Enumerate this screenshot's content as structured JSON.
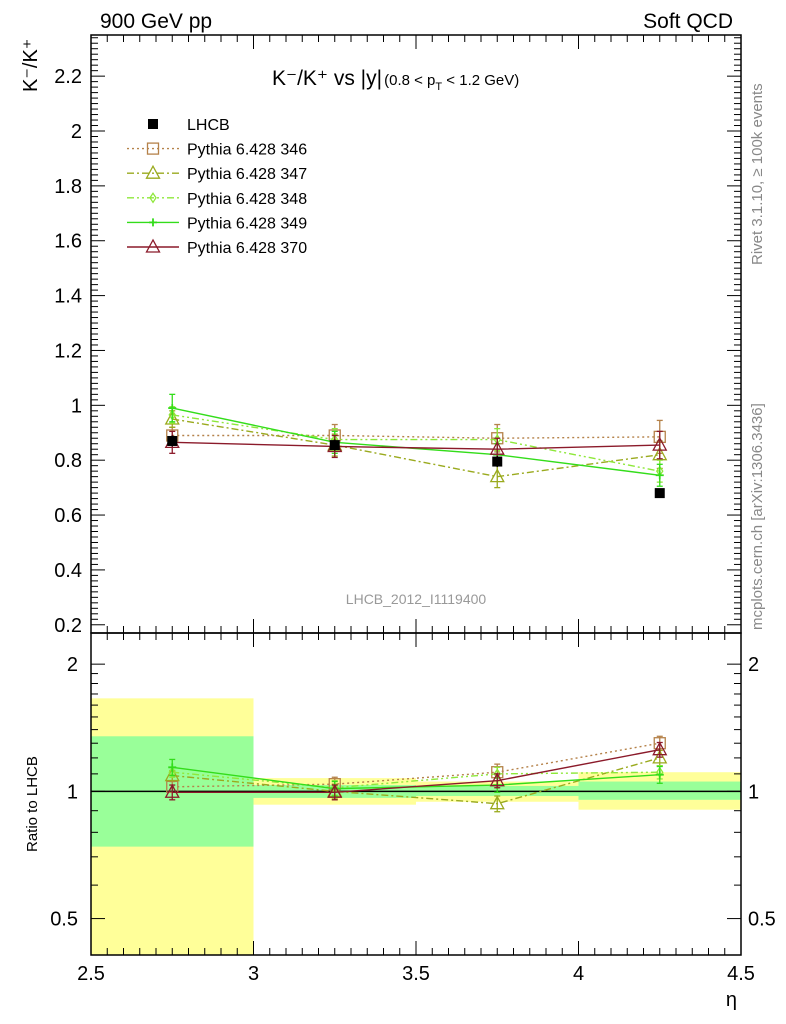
{
  "header": {
    "left": "900 GeV pp",
    "right": "Soft QCD"
  },
  "side_labels": {
    "rivet": "Rivet 3.1.10, ≥ 100k events",
    "mcplots": "mcplots.cern.ch [arXiv:1306.3436]"
  },
  "watermark": "LHCB_2012_I1119400",
  "chart_data": [
    {
      "type": "line",
      "title": "K⁻/K⁺ vs |y|",
      "title_suffix": "(0.8 < p",
      "title_suffix_sub": "T",
      "title_suffix_end": " < 1.2 GeV)",
      "ylabel": "K⁻/K⁺",
      "xlim": [
        2.5,
        4.5
      ],
      "ylim": [
        0.17,
        2.35
      ],
      "yticks": [
        0.2,
        0.4,
        0.6,
        0.8,
        1,
        1.2,
        1.4,
        1.6,
        1.8,
        2,
        2.2
      ],
      "ytick_labels": [
        "0.2",
        "0.4",
        "0.6",
        "0.8",
        "1",
        "1.2",
        "1.4",
        "1.6",
        "1.8",
        "2",
        "2.2"
      ],
      "legend_position": "top-left",
      "x": [
        2.75,
        3.25,
        3.75,
        4.25
      ],
      "data": {
        "name": "LHCB",
        "y": [
          0.87,
          0.855,
          0.795,
          0.68
        ],
        "yerr": [
          0.02,
          0.02,
          0.02,
          0.01
        ],
        "color": "#000000"
      },
      "series": [
        {
          "name": "Pythia 6.428 346",
          "y": [
            0.89,
            0.89,
            0.88,
            0.885
          ],
          "yerr": [
            0.03,
            0.04,
            0.05,
            0.06
          ],
          "color": "#b5824a",
          "dash": "2,3",
          "marker": "square"
        },
        {
          "name": "Pythia 6.428 347",
          "y": [
            0.95,
            0.855,
            0.74,
            0.82
          ],
          "yerr": [
            0.03,
            0.04,
            0.04,
            0.05
          ],
          "color": "#9aaa1e",
          "dash": "7,3,2,3",
          "marker": "triangle"
        },
        {
          "name": "Pythia 6.428 348",
          "y": [
            0.965,
            0.875,
            0.875,
            0.76
          ],
          "yerr": [
            0.03,
            0.04,
            0.04,
            0.04
          ],
          "color": "#8ee83a",
          "dash": "7,3,2,3,2,3",
          "marker": "diamond"
        },
        {
          "name": "Pythia 6.428 349",
          "y": [
            0.99,
            0.865,
            0.82,
            0.745
          ],
          "yerr": [
            0.05,
            0.04,
            0.04,
            0.04
          ],
          "color": "#33dd1a",
          "dash": "",
          "marker": "cross"
        },
        {
          "name": "Pythia 6.428 370",
          "y": [
            0.865,
            0.85,
            0.84,
            0.855
          ],
          "yerr": [
            0.04,
            0.04,
            0.04,
            0.05
          ],
          "color": "#8b1a2a",
          "dash": "",
          "marker": "triangle"
        }
      ]
    },
    {
      "type": "line",
      "ylabel": "Ratio to LHCB",
      "xlabel": "η",
      "xlim": [
        2.5,
        4.5
      ],
      "ylim": [
        0.41,
        2.37
      ],
      "yscale": "log",
      "yticks": [
        0.5,
        1,
        2
      ],
      "ytick_labels": [
        "0.5",
        "1",
        "2"
      ],
      "xticks": [
        2.5,
        3,
        3.5,
        4,
        4.5
      ],
      "xtick_labels": [
        "2.5",
        "3",
        "3.5",
        "4",
        "4.5"
      ],
      "bands": [
        {
          "x": [
            2.5,
            3.0
          ],
          "inner": [
            0.74,
            1.35
          ],
          "outer": [
            0.41,
            1.66
          ]
        },
        {
          "x": [
            3.0,
            3.5
          ],
          "inner": [
            0.965,
            1.035
          ],
          "outer": [
            0.93,
            1.075
          ]
        },
        {
          "x": [
            3.5,
            4.0
          ],
          "inner": [
            0.975,
            1.03
          ],
          "outer": [
            0.945,
            1.055
          ]
        },
        {
          "x": [
            4.0,
            4.5
          ],
          "inner": [
            0.955,
            1.055
          ],
          "outer": [
            0.905,
            1.11
          ]
        }
      ],
      "band_colors": {
        "inner": "#99ff99",
        "outer": "#ffff99"
      },
      "x": [
        2.75,
        3.25,
        3.75,
        4.25
      ],
      "series": [
        {
          "name": "Pythia 6.428 346",
          "y": [
            1.025,
            1.04,
            1.11,
            1.3
          ],
          "yerr": [
            0.03,
            0.04,
            0.05,
            0.05
          ]
        },
        {
          "name": "Pythia 6.428 347",
          "y": [
            1.09,
            1.0,
            0.935,
            1.2
          ],
          "yerr": [
            0.03,
            0.04,
            0.04,
            0.05
          ]
        },
        {
          "name": "Pythia 6.428 348",
          "y": [
            1.11,
            1.02,
            1.1,
            1.11
          ],
          "yerr": [
            0.03,
            0.04,
            0.04,
            0.04
          ]
        },
        {
          "name": "Pythia 6.428 349",
          "y": [
            1.14,
            1.015,
            1.035,
            1.095
          ],
          "yerr": [
            0.05,
            0.04,
            0.04,
            0.05
          ]
        },
        {
          "name": "Pythia 6.428 370",
          "y": [
            0.995,
            0.995,
            1.06,
            1.255
          ],
          "yerr": [
            0.04,
            0.04,
            0.04,
            0.05
          ]
        }
      ]
    }
  ]
}
